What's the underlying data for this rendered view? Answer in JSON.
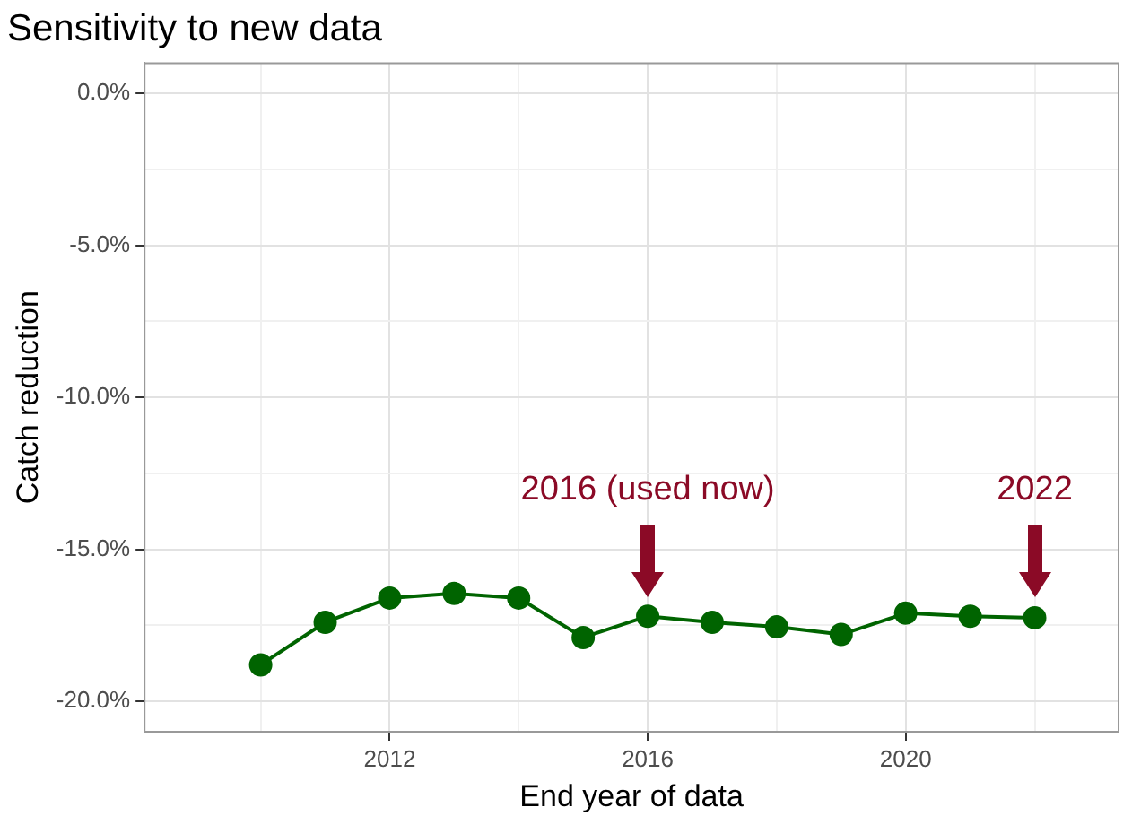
{
  "chart_data": {
    "type": "line",
    "title": "Sensitivity to new data",
    "xlabel": "End year of data",
    "ylabel": "Catch reduction",
    "x": [
      2010,
      2011,
      2012,
      2013,
      2014,
      2015,
      2016,
      2017,
      2018,
      2019,
      2020,
      2021,
      2022
    ],
    "series": [
      {
        "color": "#006400",
        "values": [
          -18.8,
          -17.4,
          -16.6,
          -16.45,
          -16.6,
          -17.9,
          -17.2,
          -17.4,
          -17.55,
          -17.8,
          -17.1,
          -17.2,
          -17.25
        ]
      }
    ],
    "xlim": [
      2008.2,
      2023.3
    ],
    "xticks": [
      {
        "value": 2010,
        "label": null
      },
      {
        "value": 2012,
        "label": "2012"
      },
      {
        "value": 2014,
        "label": null
      },
      {
        "value": 2016,
        "label": "2016"
      },
      {
        "value": 2018,
        "label": null
      },
      {
        "value": 2020,
        "label": "2020"
      },
      {
        "value": 2022,
        "label": null
      }
    ],
    "ylim": [
      -21,
      1
    ],
    "yticks": [
      {
        "value": -20,
        "label": "-20.0%"
      },
      {
        "value": -17.5,
        "label": null
      },
      {
        "value": -15,
        "label": "-15.0%"
      },
      {
        "value": -12.5,
        "label": null
      },
      {
        "value": -10,
        "label": "-10.0%"
      },
      {
        "value": -7.5,
        "label": null
      },
      {
        "value": -5,
        "label": "-5.0%"
      },
      {
        "value": -2.5,
        "label": null
      },
      {
        "value": 0,
        "label": "0.0%"
      }
    ],
    "annotations": [
      "2016 (used now)",
      "2022"
    ],
    "grid": true,
    "marker": "circle",
    "line_style": "solid",
    "legend": false
  }
}
